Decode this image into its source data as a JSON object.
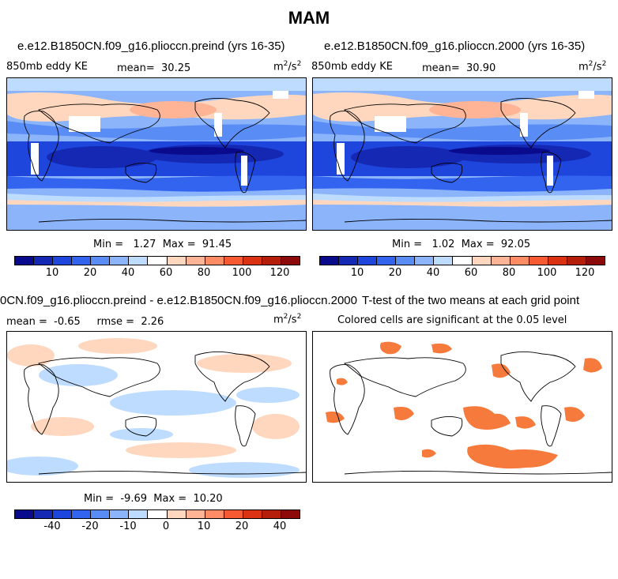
{
  "title": "MAM",
  "panels": {
    "top_left": {
      "title": "e.e12.B1850CN.f09_g16.plioccn.preind (yrs 16-35)",
      "variable": "850mb eddy KE",
      "mean_label": "mean=",
      "mean_value": "30.25",
      "units_base": "m",
      "units_sup1": "2",
      "units_mid": "/s",
      "units_sup2": "2",
      "min_label": "Min =",
      "min_value": "1.27",
      "max_label": "Max =",
      "max_value": "91.45"
    },
    "top_right": {
      "title": "e.e12.B1850CN.f09_g16.plioccn.2000 (yrs 16-35)",
      "variable": "850mb eddy KE",
      "mean_label": "mean=",
      "mean_value": "30.90",
      "units_base": "m",
      "units_sup1": "2",
      "units_mid": "/s",
      "units_sup2": "2",
      "min_label": "Min =",
      "min_value": "1.02",
      "max_label": "Max =",
      "max_value": "92.05"
    },
    "bottom_left": {
      "title": "0CN.f09_g16.plioccn.preind - e.e12.B1850CN.f09_g16.plioccn.2000",
      "mean_label": "mean =",
      "mean_value": "-0.65",
      "rmse_label": "rmse =",
      "rmse_value": "2.26",
      "units_base": "m",
      "units_sup1": "2",
      "units_mid": "/s",
      "units_sup2": "2",
      "min_label": "Min =",
      "min_value": "-9.69",
      "max_label": "Max =",
      "max_value": "10.20"
    },
    "bottom_right": {
      "title": "T-test of the two means at each grid point",
      "subtitle": "Colored cells are significant at the 0.05 level"
    }
  },
  "colorbars": {
    "colors": [
      "#0a0a8c",
      "#1428b4",
      "#1e46dc",
      "#3264f0",
      "#5a8cf5",
      "#8cb4fa",
      "#bedcff",
      "#ffffff",
      "#ffd7be",
      "#ffb496",
      "#ff8c64",
      "#f55a32",
      "#dc3214",
      "#b41e0a",
      "#8c0a0a"
    ],
    "field_ticks": [
      "10",
      "20",
      "40",
      "60",
      "80",
      "100",
      "120"
    ],
    "diff_ticks": [
      "-40",
      "-20",
      "-10",
      "0",
      "10",
      "20",
      "40"
    ]
  }
}
